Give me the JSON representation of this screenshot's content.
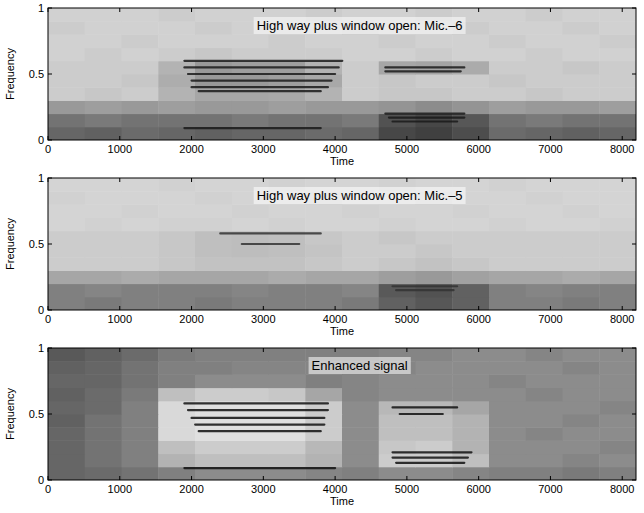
{
  "chart_data": [
    {
      "type": "heatmap",
      "title": "High way plus window open: Mic.–6",
      "x_label": "Time",
      "y_label": "Frequency",
      "xlim": [
        0,
        8192
      ],
      "ylim": [
        0,
        1
      ],
      "xticks": [
        0,
        1000,
        2000,
        3000,
        4000,
        5000,
        6000,
        7000,
        8000
      ],
      "yticks": [
        0,
        0.5,
        1
      ],
      "grid": false,
      "color": "#1a1a1a",
      "cells": [
        [
          0.6,
          0.62,
          0.58,
          0.6,
          0.62,
          0.6,
          0.6,
          0.58,
          0.6,
          0.72,
          0.75,
          0.7,
          0.58,
          0.6,
          0.62,
          0.6
        ],
        [
          0.55,
          0.52,
          0.55,
          0.55,
          0.55,
          0.52,
          0.55,
          0.55,
          0.52,
          0.68,
          0.72,
          0.66,
          0.55,
          0.52,
          0.55,
          0.55
        ],
        [
          0.4,
          0.38,
          0.4,
          0.38,
          0.4,
          0.4,
          0.38,
          0.4,
          0.4,
          0.42,
          0.45,
          0.42,
          0.38,
          0.4,
          0.4,
          0.38
        ],
        [
          0.2,
          0.22,
          0.2,
          0.3,
          0.35,
          0.35,
          0.34,
          0.3,
          0.2,
          0.22,
          0.22,
          0.2,
          0.2,
          0.22,
          0.2,
          0.2
        ],
        [
          0.2,
          0.2,
          0.22,
          0.32,
          0.4,
          0.4,
          0.38,
          0.34,
          0.2,
          0.22,
          0.2,
          0.2,
          0.22,
          0.2,
          0.2,
          0.2
        ],
        [
          0.2,
          0.2,
          0.2,
          0.3,
          0.4,
          0.38,
          0.38,
          0.3,
          0.2,
          0.35,
          0.36,
          0.33,
          0.2,
          0.2,
          0.22,
          0.2
        ],
        [
          0.18,
          0.2,
          0.18,
          0.2,
          0.22,
          0.2,
          0.2,
          0.2,
          0.18,
          0.18,
          0.2,
          0.18,
          0.18,
          0.2,
          0.18,
          0.18
        ],
        [
          0.18,
          0.18,
          0.2,
          0.18,
          0.18,
          0.18,
          0.2,
          0.18,
          0.18,
          0.2,
          0.18,
          0.18,
          0.2,
          0.18,
          0.18,
          0.2
        ],
        [
          0.2,
          0.18,
          0.18,
          0.18,
          0.2,
          0.18,
          0.18,
          0.18,
          0.2,
          0.18,
          0.18,
          0.2,
          0.18,
          0.18,
          0.2,
          0.18
        ],
        [
          0.18,
          0.18,
          0.18,
          0.2,
          0.18,
          0.18,
          0.18,
          0.2,
          0.18,
          0.18,
          0.2,
          0.18,
          0.18,
          0.2,
          0.18,
          0.18
        ]
      ],
      "series": [
        {
          "x": [
            1900,
            4100
          ],
          "values": [
            0.6,
            0.6
          ]
        },
        {
          "x": [
            1900,
            4050
          ],
          "values": [
            0.55,
            0.55
          ]
        },
        {
          "x": [
            1950,
            4000
          ],
          "values": [
            0.5,
            0.5
          ]
        },
        {
          "x": [
            2000,
            3950
          ],
          "values": [
            0.45,
            0.45
          ]
        },
        {
          "x": [
            2000,
            3900
          ],
          "values": [
            0.4,
            0.4
          ]
        },
        {
          "x": [
            2100,
            3800
          ],
          "values": [
            0.37,
            0.37
          ]
        },
        {
          "x": [
            1900,
            3800
          ],
          "values": [
            0.09,
            0.09
          ]
        },
        {
          "x": [
            4700,
            5800
          ],
          "values": [
            0.55,
            0.55
          ]
        },
        {
          "x": [
            4700,
            5750
          ],
          "values": [
            0.52,
            0.52
          ]
        },
        {
          "x": [
            4700,
            5800
          ],
          "values": [
            0.2,
            0.2
          ]
        },
        {
          "x": [
            4750,
            5800
          ],
          "values": [
            0.17,
            0.17
          ]
        },
        {
          "x": [
            4800,
            5700
          ],
          "values": [
            0.14,
            0.14
          ]
        }
      ]
    },
    {
      "type": "heatmap",
      "title": "High way plus window open: Mic.–5",
      "x_label": "Time",
      "y_label": "Frequency",
      "xlim": [
        0,
        8192
      ],
      "ylim": [
        0,
        1
      ],
      "xticks": [
        0,
        1000,
        2000,
        3000,
        4000,
        5000,
        6000,
        7000,
        8000
      ],
      "yticks": [
        0,
        0.5,
        1
      ],
      "grid": false,
      "color": "#333333",
      "cells": [
        [
          0.5,
          0.52,
          0.5,
          0.5,
          0.52,
          0.5,
          0.5,
          0.5,
          0.52,
          0.62,
          0.66,
          0.62,
          0.5,
          0.5,
          0.52,
          0.5
        ],
        [
          0.5,
          0.48,
          0.5,
          0.5,
          0.5,
          0.48,
          0.5,
          0.5,
          0.48,
          0.65,
          0.68,
          0.62,
          0.5,
          0.48,
          0.5,
          0.5
        ],
        [
          0.35,
          0.35,
          0.33,
          0.35,
          0.35,
          0.35,
          0.33,
          0.35,
          0.35,
          0.38,
          0.4,
          0.37,
          0.35,
          0.35,
          0.33,
          0.35
        ],
        [
          0.2,
          0.2,
          0.2,
          0.22,
          0.24,
          0.24,
          0.24,
          0.22,
          0.2,
          0.22,
          0.24,
          0.22,
          0.2,
          0.2,
          0.2,
          0.2
        ],
        [
          0.2,
          0.2,
          0.2,
          0.22,
          0.25,
          0.26,
          0.25,
          0.23,
          0.2,
          0.2,
          0.22,
          0.2,
          0.2,
          0.2,
          0.2,
          0.2
        ],
        [
          0.2,
          0.2,
          0.2,
          0.22,
          0.25,
          0.26,
          0.25,
          0.22,
          0.2,
          0.22,
          0.2,
          0.2,
          0.2,
          0.2,
          0.2,
          0.2
        ],
        [
          0.17,
          0.18,
          0.17,
          0.18,
          0.18,
          0.17,
          0.18,
          0.17,
          0.17,
          0.18,
          0.17,
          0.17,
          0.18,
          0.17,
          0.17,
          0.18
        ],
        [
          0.17,
          0.17,
          0.18,
          0.17,
          0.17,
          0.18,
          0.17,
          0.17,
          0.18,
          0.17,
          0.17,
          0.18,
          0.17,
          0.17,
          0.18,
          0.17
        ],
        [
          0.18,
          0.17,
          0.17,
          0.17,
          0.18,
          0.17,
          0.17,
          0.18,
          0.17,
          0.17,
          0.18,
          0.17,
          0.17,
          0.18,
          0.17,
          0.17
        ],
        [
          0.17,
          0.17,
          0.17,
          0.18,
          0.17,
          0.17,
          0.18,
          0.17,
          0.17,
          0.18,
          0.17,
          0.17,
          0.18,
          0.17,
          0.17,
          0.17
        ]
      ],
      "series": [
        {
          "x": [
            2400,
            3800
          ],
          "values": [
            0.58,
            0.58
          ]
        },
        {
          "x": [
            2700,
            3500
          ],
          "values": [
            0.5,
            0.5
          ]
        },
        {
          "x": [
            4800,
            5700
          ],
          "values": [
            0.18,
            0.18
          ]
        },
        {
          "x": [
            4850,
            5650
          ],
          "values": [
            0.15,
            0.15
          ]
        }
      ]
    },
    {
      "type": "heatmap",
      "title": "Enhanced signal",
      "x_label": "Time",
      "y_label": "Frequency",
      "xlim": [
        0,
        8192
      ],
      "ylim": [
        0,
        1
      ],
      "xticks": [
        0,
        1000,
        2000,
        3000,
        4000,
        5000,
        6000,
        7000,
        8000
      ],
      "yticks": [
        0,
        0.5,
        1
      ],
      "grid": false,
      "color": "#111111",
      "cells": [
        [
          0.6,
          0.58,
          0.55,
          0.5,
          0.45,
          0.45,
          0.45,
          0.48,
          0.5,
          0.45,
          0.45,
          0.48,
          0.5,
          0.5,
          0.52,
          0.5
        ],
        [
          0.6,
          0.55,
          0.5,
          0.3,
          0.25,
          0.25,
          0.25,
          0.3,
          0.45,
          0.2,
          0.2,
          0.25,
          0.45,
          0.45,
          0.48,
          0.45
        ],
        [
          0.6,
          0.55,
          0.5,
          0.25,
          0.2,
          0.2,
          0.2,
          0.28,
          0.45,
          0.22,
          0.2,
          0.3,
          0.45,
          0.45,
          0.45,
          0.48
        ],
        [
          0.6,
          0.55,
          0.5,
          0.15,
          0.12,
          0.12,
          0.12,
          0.2,
          0.45,
          0.25,
          0.25,
          0.3,
          0.45,
          0.48,
          0.45,
          0.45
        ],
        [
          0.62,
          0.55,
          0.5,
          0.15,
          0.12,
          0.12,
          0.12,
          0.2,
          0.45,
          0.25,
          0.25,
          0.3,
          0.45,
          0.45,
          0.48,
          0.45
        ],
        [
          0.6,
          0.58,
          0.5,
          0.15,
          0.12,
          0.12,
          0.12,
          0.2,
          0.45,
          0.28,
          0.28,
          0.35,
          0.45,
          0.45,
          0.45,
          0.48
        ],
        [
          0.62,
          0.58,
          0.52,
          0.25,
          0.2,
          0.2,
          0.22,
          0.35,
          0.48,
          0.45,
          0.45,
          0.45,
          0.45,
          0.48,
          0.45,
          0.45
        ],
        [
          0.6,
          0.6,
          0.55,
          0.5,
          0.45,
          0.45,
          0.45,
          0.5,
          0.48,
          0.45,
          0.45,
          0.45,
          0.48,
          0.45,
          0.45,
          0.45
        ],
        [
          0.62,
          0.6,
          0.55,
          0.5,
          0.5,
          0.48,
          0.48,
          0.48,
          0.5,
          0.48,
          0.45,
          0.45,
          0.45,
          0.45,
          0.48,
          0.45
        ],
        [
          0.65,
          0.62,
          0.58,
          0.52,
          0.5,
          0.5,
          0.5,
          0.5,
          0.5,
          0.48,
          0.48,
          0.45,
          0.45,
          0.48,
          0.45,
          0.45
        ]
      ],
      "series": [
        {
          "x": [
            1900,
            3900
          ],
          "values": [
            0.58,
            0.58
          ]
        },
        {
          "x": [
            1950,
            3900
          ],
          "values": [
            0.53,
            0.53
          ]
        },
        {
          "x": [
            2000,
            3850
          ],
          "values": [
            0.47,
            0.47
          ]
        },
        {
          "x": [
            2050,
            3850
          ],
          "values": [
            0.42,
            0.42
          ]
        },
        {
          "x": [
            2100,
            3800
          ],
          "values": [
            0.37,
            0.37
          ]
        },
        {
          "x": [
            1900,
            4000
          ],
          "values": [
            0.09,
            0.09
          ]
        },
        {
          "x": [
            4800,
            5700
          ],
          "values": [
            0.55,
            0.55
          ]
        },
        {
          "x": [
            4900,
            5500
          ],
          "values": [
            0.5,
            0.5
          ]
        },
        {
          "x": [
            4800,
            5900
          ],
          "values": [
            0.21,
            0.21
          ]
        },
        {
          "x": [
            4800,
            5850
          ],
          "values": [
            0.17,
            0.17
          ]
        },
        {
          "x": [
            4850,
            5800
          ],
          "values": [
            0.13,
            0.13
          ]
        }
      ]
    }
  ]
}
